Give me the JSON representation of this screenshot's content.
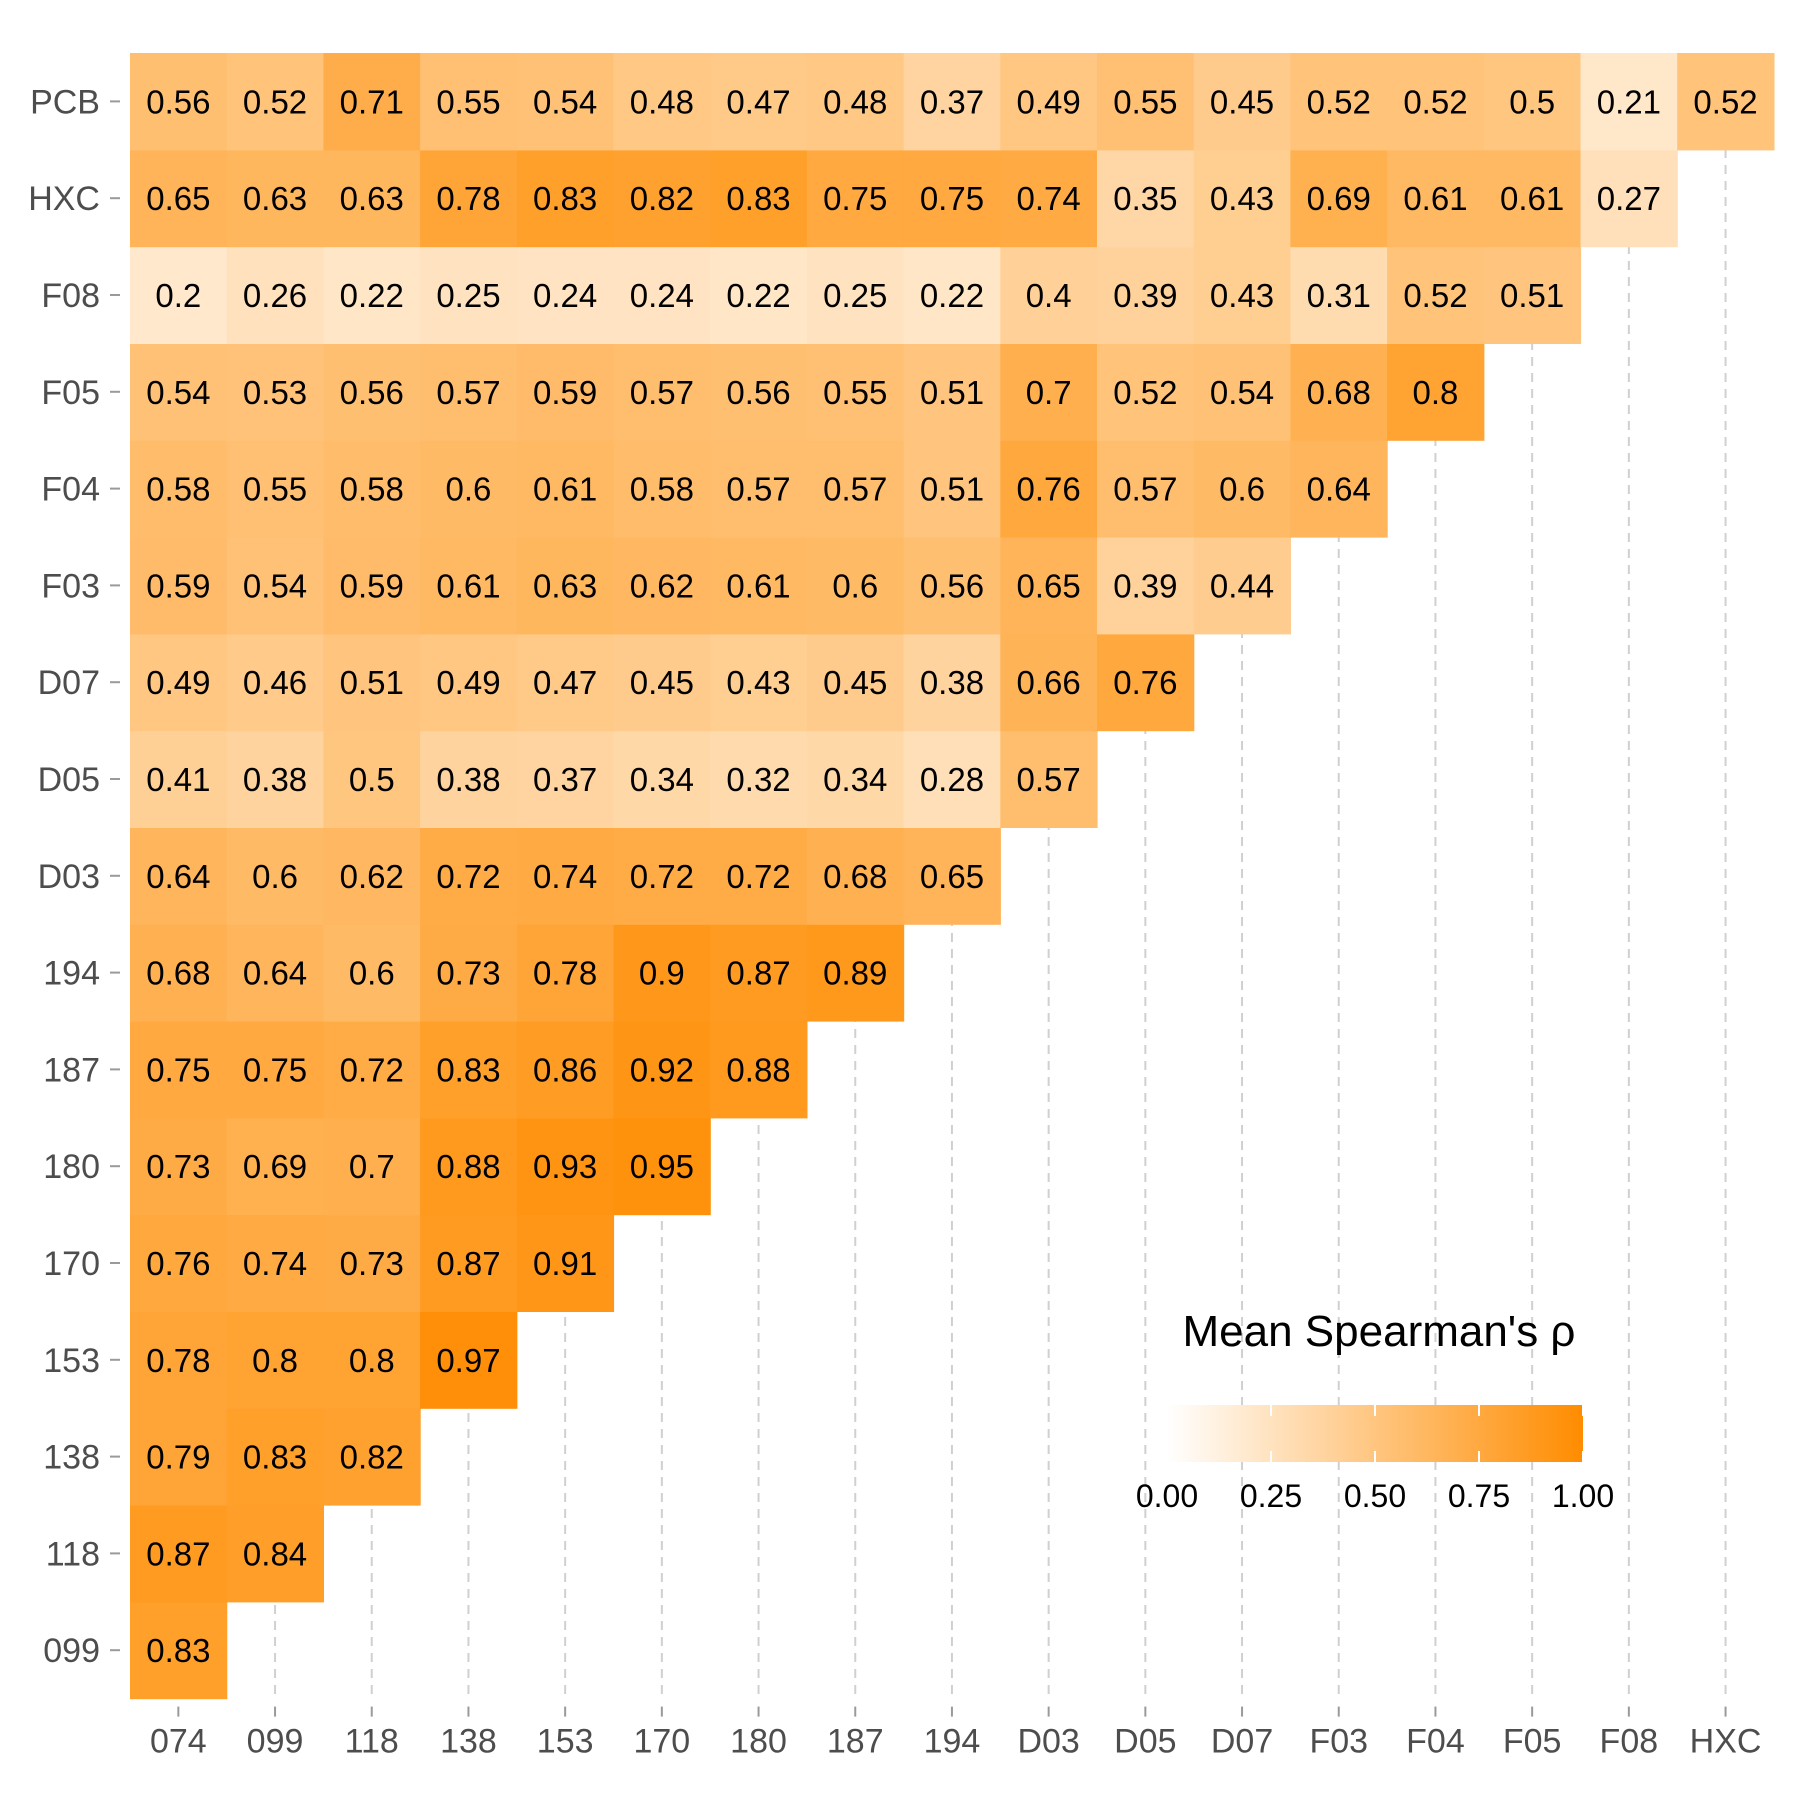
{
  "chart_data": {
    "type": "heatmap",
    "title": "",
    "xlabel": "",
    "ylabel": "",
    "x_categories": [
      "074",
      "099",
      "118",
      "138",
      "153",
      "170",
      "180",
      "187",
      "194",
      "D03",
      "D05",
      "D07",
      "F03",
      "F04",
      "F05",
      "F08",
      "HXC"
    ],
    "y_categories": [
      "099",
      "118",
      "138",
      "153",
      "170",
      "180",
      "187",
      "194",
      "D03",
      "D05",
      "D07",
      "F03",
      "F04",
      "F05",
      "F08",
      "HXC",
      "PCB"
    ],
    "values": [
      [
        0.83
      ],
      [
        0.87,
        0.84
      ],
      [
        0.79,
        0.83,
        0.82
      ],
      [
        0.78,
        0.8,
        0.8,
        0.97
      ],
      [
        0.76,
        0.74,
        0.73,
        0.87,
        0.91
      ],
      [
        0.73,
        0.69,
        0.7,
        0.88,
        0.93,
        0.95
      ],
      [
        0.75,
        0.75,
        0.72,
        0.83,
        0.86,
        0.92,
        0.88
      ],
      [
        0.68,
        0.64,
        0.6,
        0.73,
        0.78,
        0.9,
        0.87,
        0.89
      ],
      [
        0.64,
        0.6,
        0.62,
        0.72,
        0.74,
        0.72,
        0.72,
        0.68,
        0.65
      ],
      [
        0.41,
        0.38,
        0.5,
        0.38,
        0.37,
        0.34,
        0.32,
        0.34,
        0.28,
        0.57
      ],
      [
        0.49,
        0.46,
        0.51,
        0.49,
        0.47,
        0.45,
        0.43,
        0.45,
        0.38,
        0.66,
        0.76
      ],
      [
        0.59,
        0.54,
        0.59,
        0.61,
        0.63,
        0.62,
        0.61,
        0.6,
        0.56,
        0.65,
        0.39,
        0.44
      ],
      [
        0.58,
        0.55,
        0.58,
        0.6,
        0.61,
        0.58,
        0.57,
        0.57,
        0.51,
        0.76,
        0.57,
        0.6,
        0.64
      ],
      [
        0.54,
        0.53,
        0.56,
        0.57,
        0.59,
        0.57,
        0.56,
        0.55,
        0.51,
        0.7,
        0.52,
        0.54,
        0.68,
        0.8
      ],
      [
        0.2,
        0.26,
        0.22,
        0.25,
        0.24,
        0.24,
        0.22,
        0.25,
        0.22,
        0.4,
        0.39,
        0.43,
        0.31,
        0.52,
        0.51
      ],
      [
        0.65,
        0.63,
        0.63,
        0.78,
        0.83,
        0.82,
        0.83,
        0.75,
        0.75,
        0.74,
        0.35,
        0.43,
        0.69,
        0.61,
        0.61,
        0.27
      ],
      [
        0.56,
        0.52,
        0.71,
        0.55,
        0.54,
        0.48,
        0.47,
        0.48,
        0.37,
        0.49,
        0.55,
        0.45,
        0.52,
        0.52,
        0.5,
        0.21,
        0.52
      ]
    ],
    "color_scale": {
      "low": "#ffffff",
      "high": "#ff8c00",
      "limits": [
        0,
        1
      ]
    },
    "legend": {
      "title": "Mean Spearman's ρ",
      "placement": "bottom-right",
      "ticks": [
        "0.00",
        "0.25",
        "0.50",
        "0.75",
        "1.00"
      ]
    },
    "grid": "vertical-dashed"
  }
}
